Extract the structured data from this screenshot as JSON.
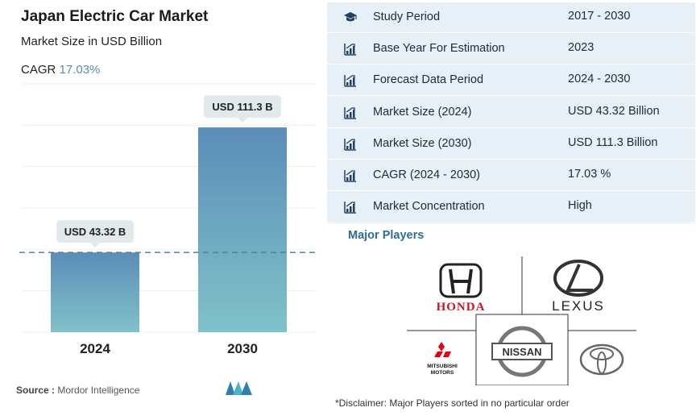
{
  "header": {
    "title": "Japan Electric Car Market",
    "subtitle": "Market Size in USD Billion",
    "cagr_label": "CAGR",
    "cagr_value": "17.03%"
  },
  "chart_data": {
    "type": "bar",
    "categories": [
      "2024",
      "2030"
    ],
    "values": [
      43.32,
      111.3
    ],
    "data_labels": [
      "USD 43.32 B",
      "USD 111.3 B"
    ],
    "ylim": [
      0,
      135
    ],
    "reference_line": 43.32,
    "grid": true,
    "title": "",
    "xlabel": "",
    "ylabel": ""
  },
  "source": {
    "label": "Source :",
    "text": "Mordor Intelligence"
  },
  "stats": [
    {
      "icon": "graduation-cap-icon",
      "label": "Study Period",
      "value": "2017 - 2030"
    },
    {
      "icon": "bar-chart-icon",
      "label": "Base Year For Estimation",
      "value": "2023"
    },
    {
      "icon": "bar-chart-icon",
      "label": "Forecast Data Period",
      "value": "2024 - 2030"
    },
    {
      "icon": "bar-chart-icon",
      "label": "Market Size (2024)",
      "value": "USD 43.32 Billion"
    },
    {
      "icon": "bar-chart-icon",
      "label": "Market Size (2030)",
      "value": "USD 111.3 Billion"
    },
    {
      "icon": "bar-chart-icon",
      "label": "CAGR (2024 - 2030)",
      "value": "17.03 %"
    },
    {
      "icon": "bar-chart-icon",
      "label": "Market Concentration",
      "value": "High"
    }
  ],
  "players": {
    "title": "Major Players",
    "logos": {
      "honda": "HONDA",
      "lexus": "LEXUS",
      "mitsubishi_line1": "MITSUBISHI",
      "mitsubishi_line2": "MOTORS",
      "nissan": "NISSAN",
      "toyota": "TOYOTA"
    },
    "disclaimer": "*Disclaimer: Major Players sorted in no particular order"
  },
  "colors": {
    "bar_top": "#5b8db8",
    "bar_bottom": "#80c2c9",
    "accent": "#2c6e9c",
    "panel_bg": "#e7f0f6",
    "honda_red": "#d0121b",
    "mitsubishi_red": "#e60012"
  }
}
